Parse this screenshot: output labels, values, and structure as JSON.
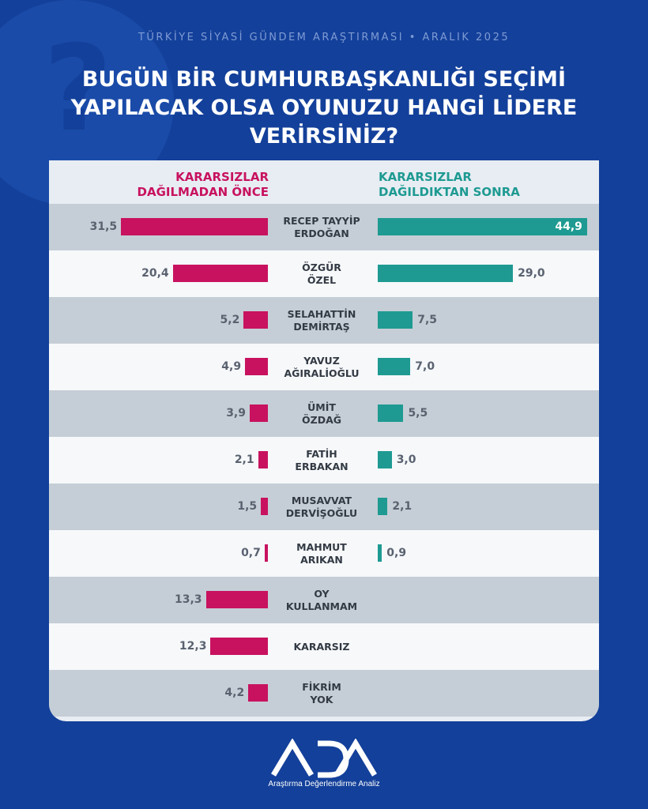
{
  "kicker": "TÜRKİYE SİYASİ GÜNDEM ARAŞTIRMASI • ARALIK 2025",
  "title": "BUGÜN BİR CUMHURBAŞKANLIĞI SEÇİMİ YAPILACAK OLSA OYUNUZU HANGİ LİDERE VERİRSİNİZ?",
  "logo": {
    "text": "ADA",
    "subtitle": "Araştırma Değerlendirme Analiz"
  },
  "colors": {
    "left": "#c8125f",
    "right": "#1e9a92",
    "background": "#13409a"
  },
  "chart_data": {
    "type": "bar",
    "title": "BUGÜN BİR CUMHURBAŞKANLIĞI SEÇİMİ YAPILACAK OLSA OYUNUZU HANGİ LİDERE VERİRSİNİZ?",
    "left_label": "KARARSIZLAR\nDAĞILMADAN ÖNCE",
    "right_label": "KARARSIZLAR\nDAĞILDIKTAN SONRA",
    "categories": [
      "RECEP TAYYİP\nERDOĞAN",
      "ÖZGÜR\nÖZEL",
      "SELAHATTİN\nDEMİRTAŞ",
      "YAVUZ\nAĞIRALİOĞLU",
      "ÜMİT\nÖZDAĞ",
      "FATİH\nERBAKAN",
      "MUSAVVAT\nDERVİŞOĞLU",
      "MAHMUT\nARIKAN",
      "OY\nKULLANMAM",
      "KARARSIZ",
      "FİKRİM\nYOK"
    ],
    "series": [
      {
        "name": "KARARSIZLAR DAĞILMADAN ÖNCE",
        "values": [
          "31,5",
          "20,4",
          "5,2",
          "4,9",
          "3,9",
          "2,1",
          "1,5",
          "0,7",
          "13,3",
          "12,3",
          "4,2"
        ]
      },
      {
        "name": "KARARSIZLAR DAĞILDIKTAN SONRA",
        "values": [
          "44,9",
          "29,0",
          "7,5",
          "7,0",
          "5,5",
          "3,0",
          "2,1",
          "0,9",
          null,
          null,
          null
        ]
      }
    ],
    "xlim": [
      0,
      45
    ]
  }
}
